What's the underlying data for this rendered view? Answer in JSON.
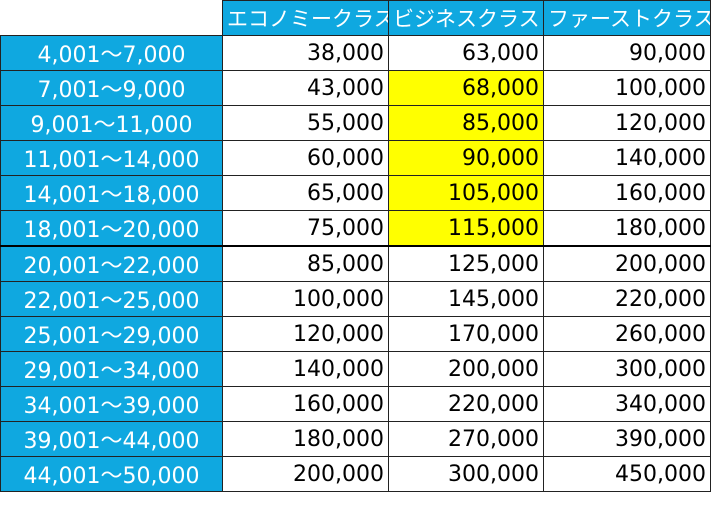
{
  "table": {
    "header": [
      "エコノミークラス",
      "ビジネスクラス",
      "ファーストクラス"
    ],
    "rows": [
      [
        "4,001～7,000",
        "38,000",
        "63,000",
        "90,000"
      ],
      [
        "7,001～9,000",
        "43,000",
        "68,000",
        "100,000"
      ],
      [
        "9,001～11,000",
        "55,000",
        "85,000",
        "120,000"
      ],
      [
        "11,001～14,000",
        "60,000",
        "90,000",
        "140,000"
      ],
      [
        "14,001～18,000",
        "65,000",
        "105,000",
        "160,000"
      ],
      [
        "18,001～20,000",
        "75,000",
        "115,000",
        "180,000"
      ],
      [
        "20,001～22,000",
        "85,000",
        "125,000",
        "200,000"
      ],
      [
        "22,001～25,000",
        "100,000",
        "145,000",
        "220,000"
      ],
      [
        "25,001～29,000",
        "120,000",
        "170,000",
        "260,000"
      ],
      [
        "29,001～34,000",
        "140,000",
        "200,000",
        "300,000"
      ],
      [
        "34,001～39,000",
        "160,000",
        "220,000",
        "340,000"
      ],
      [
        "39,001～44,000",
        "180,000",
        "270,000",
        "390,000"
      ],
      [
        "44,001～50,000",
        "200,000",
        "300,000",
        "450,000"
      ]
    ],
    "highlight": {
      "color": "#ffff00",
      "column": 2,
      "rows": [
        1,
        2,
        3,
        4,
        5
      ]
    }
  }
}
